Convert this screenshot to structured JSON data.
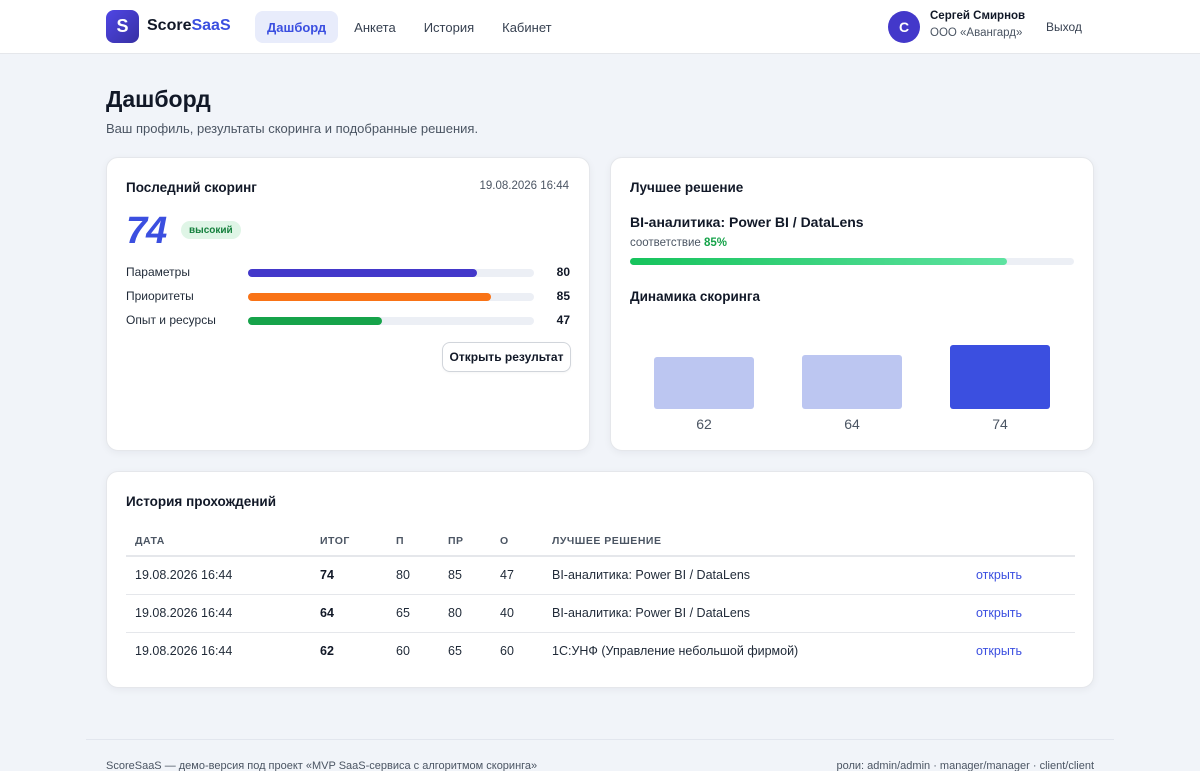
{
  "header": {
    "logo_letter": "S",
    "brand_part1": "Score",
    "brand_part2": "SaaS",
    "nav": [
      {
        "label": "Дашборд",
        "active": true
      },
      {
        "label": "Анкета",
        "active": false
      },
      {
        "label": "История",
        "active": false
      },
      {
        "label": "Кабинет",
        "active": false
      }
    ],
    "user": {
      "initial": "С",
      "name": "Сергей Смирнов",
      "org": "ООО «Авангард»"
    },
    "logout_label": "Выход"
  },
  "page": {
    "title": "Дашборд",
    "subtitle": "Ваш профиль, результаты скоринга и подобранные решения."
  },
  "last_scoring": {
    "title": "Последний скоринг",
    "date": "19.08.2026 16:44",
    "score": "74",
    "level": "высокий",
    "metrics": [
      {
        "label": "Параметры",
        "value": 80,
        "value_text": "80",
        "color": "#4338ca"
      },
      {
        "label": "Приоритеты",
        "value": 85,
        "value_text": "85",
        "color": "#f97316"
      },
      {
        "label": "Опыт и ресурсы",
        "value": 47,
        "value_text": "47",
        "color": "#16a34a"
      }
    ],
    "open_button": "Открыть результат"
  },
  "best_solution": {
    "title": "Лучшее решение",
    "name": "BI-аналитика: Power BI / DataLens",
    "match_label": "соответствие",
    "match_value": "85%",
    "match_fraction": 0.85
  },
  "dynamics": {
    "title": "Динамика скоринга"
  },
  "chart_data": {
    "type": "bar",
    "categories": [
      "",
      "",
      ""
    ],
    "values": [
      62,
      64,
      74
    ],
    "value_labels": [
      "62",
      "64",
      "74"
    ],
    "colors": [
      "#bcc6f1",
      "#bcc6f1",
      "#3b4fe0"
    ],
    "title": "",
    "xlabel": "",
    "ylabel": "",
    "grid": false
  },
  "history": {
    "title": "История прохождений",
    "columns": [
      "ДАТА",
      "ИТОГ",
      "П",
      "ПР",
      "О",
      "ЛУЧШЕЕ РЕШЕНИЕ",
      ""
    ],
    "rows": [
      {
        "date": "19.08.2026 16:44",
        "total": "74",
        "p": "80",
        "pr": "85",
        "o": "47",
        "best": "BI-аналитика: Power BI / DataLens",
        "link": "открыть"
      },
      {
        "date": "19.08.2026 16:44",
        "total": "64",
        "p": "65",
        "pr": "80",
        "o": "40",
        "best": "BI-аналитика: Power BI / DataLens",
        "link": "открыть"
      },
      {
        "date": "19.08.2026 16:44",
        "total": "62",
        "p": "60",
        "pr": "65",
        "o": "60",
        "best": "1С:УНФ (Управление небольшой фирмой)",
        "link": "открыть"
      }
    ]
  },
  "footer": {
    "left": "ScoreSaaS — демо-версия под проект «MVP SaaS-сервиса с алгоритмом скоринга»",
    "right": "роли: admin/admin · manager/manager · client/client"
  }
}
